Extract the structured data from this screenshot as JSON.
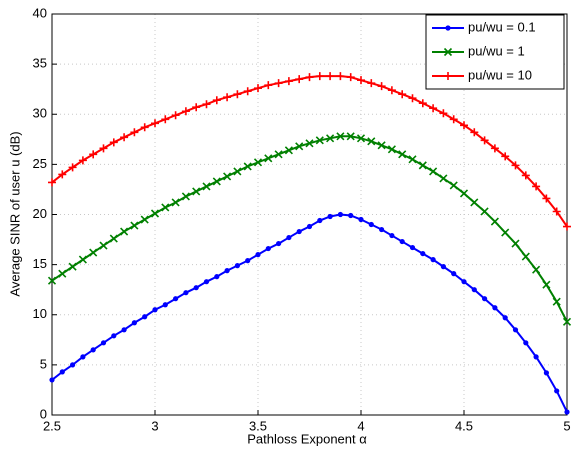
{
  "chart_data": {
    "type": "line",
    "xlabel": "Pathloss Exponent α",
    "ylabel": "Average SINR of user u (dB)",
    "x": [
      2.5,
      2.55,
      2.6,
      2.65,
      2.7,
      2.75,
      2.8,
      2.85,
      2.9,
      2.95,
      3.0,
      3.05,
      3.1,
      3.15,
      3.2,
      3.25,
      3.3,
      3.35,
      3.4,
      3.45,
      3.5,
      3.55,
      3.6,
      3.65,
      3.7,
      3.75,
      3.8,
      3.85,
      3.9,
      3.95,
      4.0,
      4.05,
      4.1,
      4.15,
      4.2,
      4.25,
      4.3,
      4.35,
      4.4,
      4.45,
      4.5,
      4.55,
      4.6,
      4.65,
      4.7,
      4.75,
      4.8,
      4.85,
      4.9,
      4.95,
      5.0
    ],
    "series": [
      {
        "name": "pu/wu = 0.1",
        "color": "#0000ff",
        "marker": "dot",
        "values": [
          3.5,
          4.3,
          5.0,
          5.8,
          6.5,
          7.2,
          7.9,
          8.5,
          9.2,
          9.8,
          10.5,
          11.0,
          11.6,
          12.2,
          12.7,
          13.3,
          13.8,
          14.4,
          14.9,
          15.4,
          16.0,
          16.6,
          17.1,
          17.7,
          18.3,
          18.8,
          19.4,
          19.8,
          20.0,
          19.9,
          19.5,
          19.0,
          18.5,
          17.9,
          17.3,
          16.7,
          16.1,
          15.5,
          14.8,
          14.1,
          13.3,
          12.5,
          11.6,
          10.7,
          9.7,
          8.5,
          7.2,
          5.8,
          4.2,
          2.4,
          0.3
        ]
      },
      {
        "name": "pu/wu = 1",
        "color": "#008000",
        "marker": "x",
        "values": [
          13.4,
          14.1,
          14.8,
          15.5,
          16.2,
          16.9,
          17.6,
          18.3,
          18.9,
          19.5,
          20.1,
          20.7,
          21.2,
          21.8,
          22.3,
          22.8,
          23.3,
          23.8,
          24.3,
          24.8,
          25.2,
          25.6,
          26.0,
          26.4,
          26.8,
          27.1,
          27.4,
          27.6,
          27.8,
          27.8,
          27.6,
          27.3,
          26.9,
          26.5,
          26.0,
          25.5,
          24.9,
          24.3,
          23.6,
          22.9,
          22.1,
          21.2,
          20.3,
          19.3,
          18.2,
          17.1,
          15.8,
          14.5,
          13.0,
          11.3,
          9.3
        ]
      },
      {
        "name": "pu/wu = 10",
        "color": "#ff0000",
        "marker": "plus",
        "values": [
          23.2,
          24.0,
          24.7,
          25.4,
          26.0,
          26.6,
          27.2,
          27.7,
          28.2,
          28.7,
          29.1,
          29.5,
          29.9,
          30.3,
          30.7,
          31.0,
          31.4,
          31.7,
          32.0,
          32.3,
          32.6,
          32.9,
          33.1,
          33.3,
          33.5,
          33.7,
          33.8,
          33.8,
          33.8,
          33.7,
          33.4,
          33.1,
          32.8,
          32.4,
          32.0,
          31.6,
          31.1,
          30.6,
          30.1,
          29.5,
          28.9,
          28.2,
          27.4,
          26.6,
          25.8,
          24.9,
          23.9,
          22.8,
          21.6,
          20.3,
          18.8
        ]
      }
    ],
    "xlim": [
      2.5,
      5
    ],
    "xticks": [
      2.5,
      3,
      3.5,
      4,
      4.5,
      5
    ],
    "ylim": [
      0,
      40
    ],
    "yticks": [
      0,
      5,
      10,
      15,
      20,
      25,
      30,
      35,
      40
    ],
    "grid": true,
    "legend": "upper right"
  }
}
